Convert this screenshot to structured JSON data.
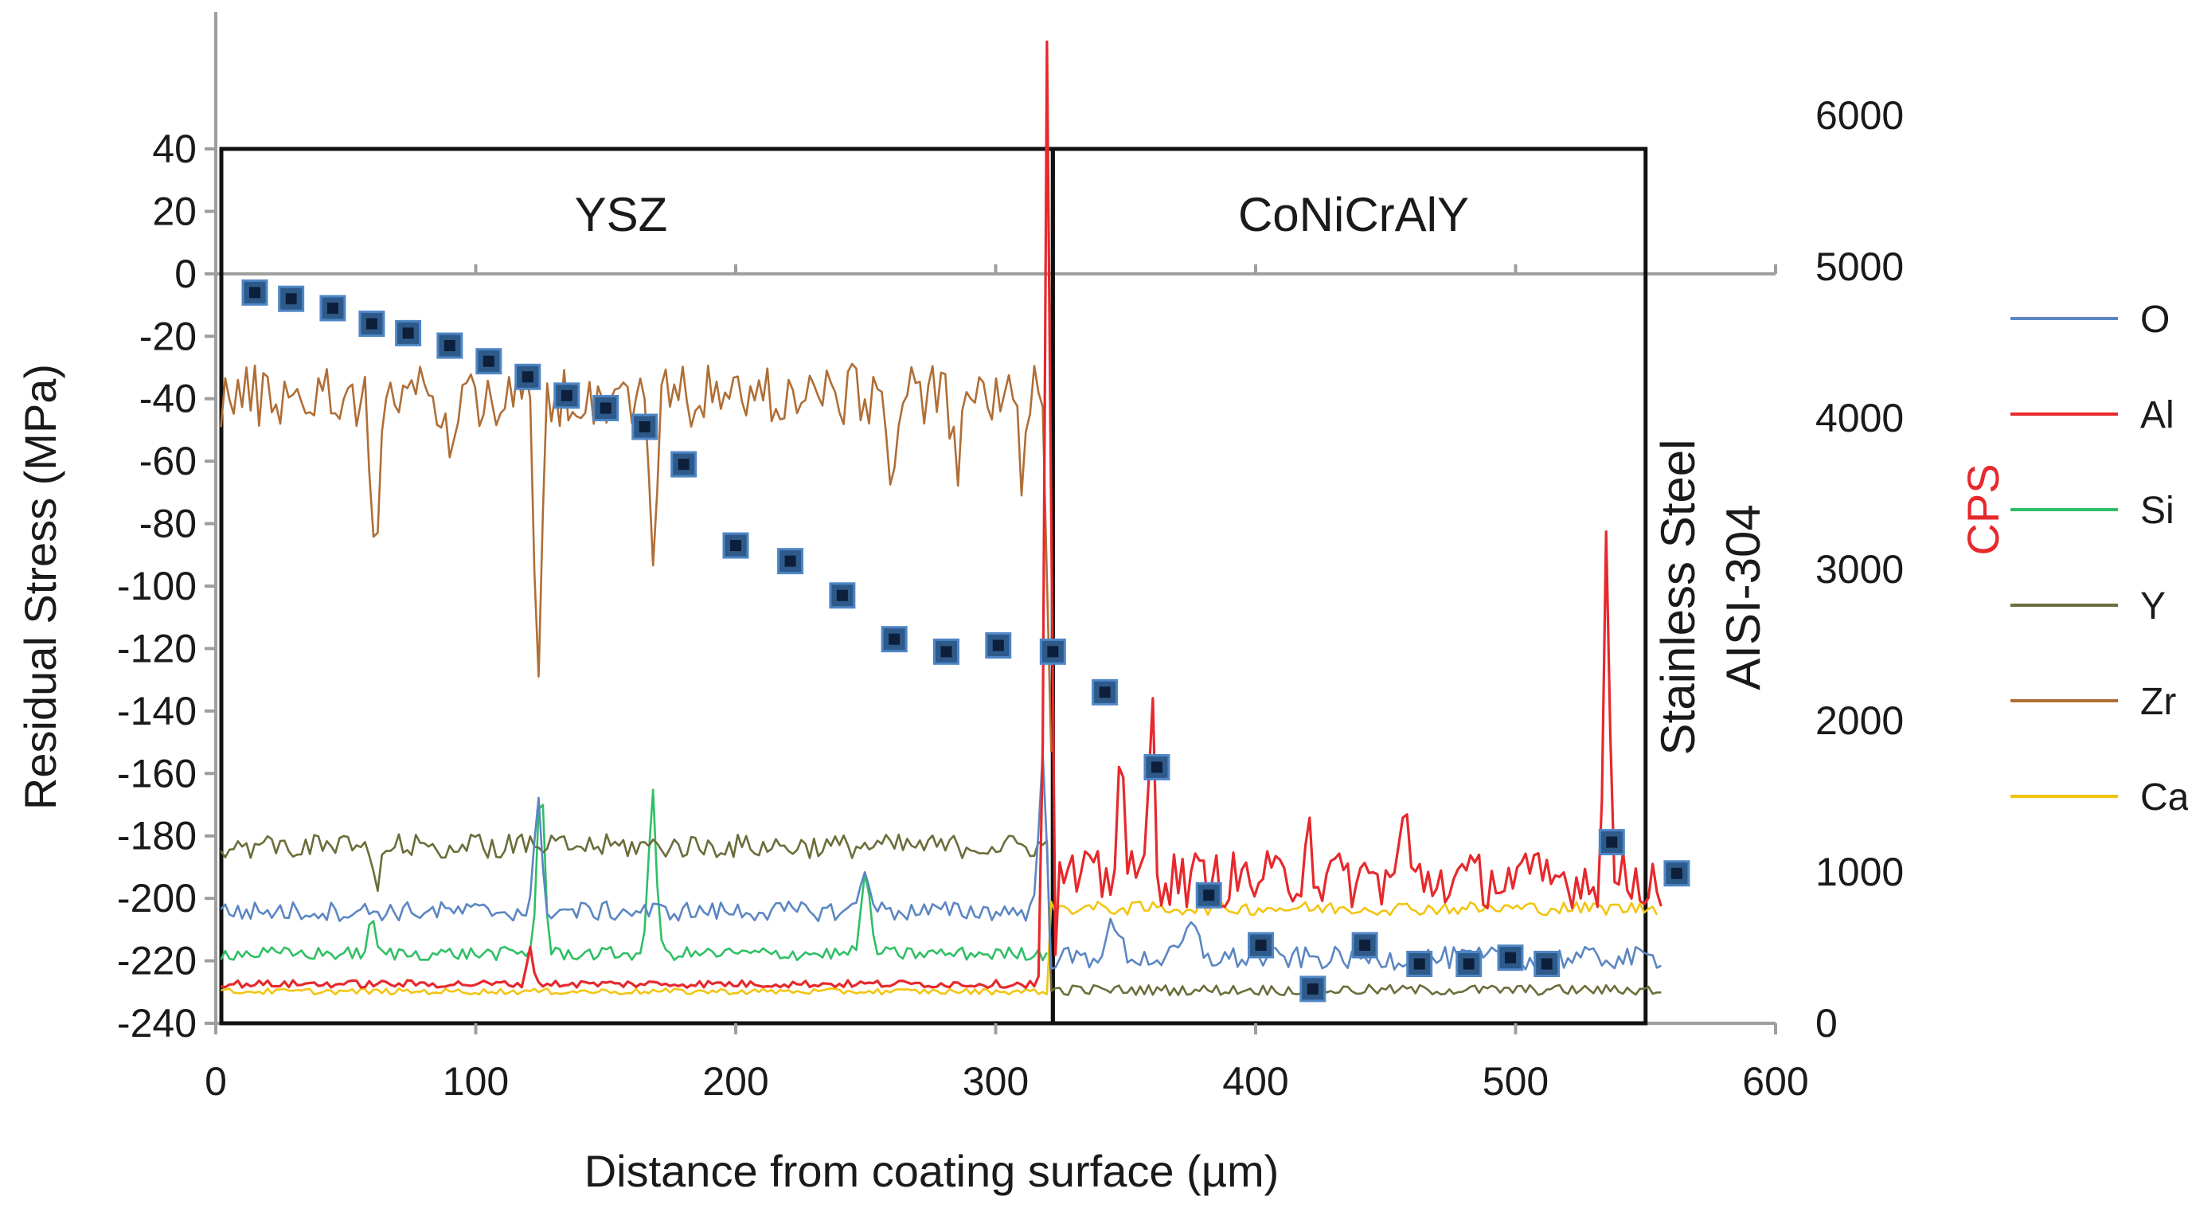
{
  "chart_data": {
    "type": "scatter+line",
    "xlabel": "Distance from coating surface (µm)",
    "ylabel_left": "Residual Stress (MPa)",
    "ylabel_right": "CPS",
    "xlim": [
      0,
      600
    ],
    "ylim_left": [
      -240,
      40
    ],
    "ylim_right": [
      0,
      6000
    ],
    "x_ticks": [
      "0",
      "100",
      "200",
      "300",
      "400",
      "500",
      "600"
    ],
    "y_left_ticks": [
      "40",
      "20",
      "0",
      "-20",
      "-40",
      "-60",
      "-80",
      "-100",
      "-120",
      "-140",
      "-160",
      "-180",
      "-200",
      "-220",
      "-240"
    ],
    "y_right_ticks": [
      "6000",
      "5000",
      "4000",
      "3000",
      "2000",
      "1000",
      "0"
    ],
    "regions": [
      {
        "label": "YSZ",
        "x_start": 0,
        "x_end": 322
      },
      {
        "label": "CoNiCrAlY",
        "x_start": 322,
        "x_end": 550
      }
    ],
    "substrate_label_line1": "Stainless  Steel",
    "substrate_label_line2": "AISI-304",
    "residual_stress": {
      "name": "Residual Stress",
      "color": "#2e5a8a",
      "points": [
        [
          15,
          -6
        ],
        [
          29,
          -8
        ],
        [
          45,
          -11
        ],
        [
          60,
          -16
        ],
        [
          74,
          -19
        ],
        [
          90,
          -23
        ],
        [
          105,
          -28
        ],
        [
          120,
          -33
        ],
        [
          135,
          -39
        ],
        [
          150,
          -43
        ],
        [
          165,
          -49
        ],
        [
          180,
          -61
        ],
        [
          200,
          -87
        ],
        [
          221,
          -92
        ],
        [
          241,
          -103
        ],
        [
          261,
          -117
        ],
        [
          281,
          -121
        ],
        [
          301,
          -119
        ],
        [
          322,
          -121
        ],
        [
          342,
          -134
        ],
        [
          362,
          -158
        ],
        [
          382,
          -199
        ],
        [
          402,
          -215
        ],
        [
          422,
          -229
        ],
        [
          442,
          -215
        ],
        [
          463,
          -221
        ],
        [
          482,
          -221
        ],
        [
          498,
          -219
        ],
        [
          512,
          -221
        ],
        [
          537,
          -182
        ],
        [
          562,
          -192
        ]
      ]
    },
    "cps_series": [
      {
        "name": "O",
        "color": "#5b86c2"
      },
      {
        "name": "Al",
        "color": "#e6292d"
      },
      {
        "name": "Si",
        "color": "#2fbf65"
      },
      {
        "name": "Y",
        "color": "#6b6d3a"
      },
      {
        "name": "Zr",
        "color": "#b06e35"
      },
      {
        "name": "Ca",
        "color": "#f2c511"
      }
    ]
  }
}
